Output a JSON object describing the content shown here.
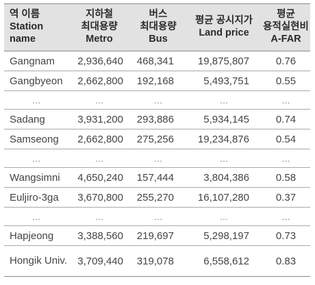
{
  "table": {
    "headers": [
      {
        "lines": [
          "역 이름",
          "Station",
          "name"
        ]
      },
      {
        "lines": [
          "지하철",
          "최대용량",
          "Metro"
        ]
      },
      {
        "lines": [
          "버스",
          "최대용량",
          "Bus"
        ]
      },
      {
        "lines": [
          "평균 공시지가",
          "Land price"
        ]
      },
      {
        "lines": [
          "평균",
          "용적실현비",
          "A-FAR"
        ]
      }
    ],
    "rows": [
      {
        "station": "Gangnam",
        "metro": "2,936,640",
        "bus": "468,341",
        "land_price": "19,875,807",
        "afar": "0.76"
      },
      {
        "station": "Gangbyeon",
        "metro": "2,662,800",
        "bus": "192,168",
        "land_price": "5,493,751",
        "afar": "0.55"
      },
      {
        "station": "…",
        "metro": "…",
        "bus": "…",
        "land_price": "…",
        "afar": "…"
      },
      {
        "station": "Sadang",
        "metro": "3,931,200",
        "bus": "293,886",
        "land_price": "5,934,145",
        "afar": "0.74"
      },
      {
        "station": "Samseong",
        "metro": "2,662,800",
        "bus": "275,256",
        "land_price": "19,234,876",
        "afar": "0.54"
      },
      {
        "station": "…",
        "metro": "…",
        "bus": "…",
        "land_price": "…",
        "afar": "…"
      },
      {
        "station": "Wangsimni",
        "metro": "4,650,240",
        "bus": "157,444",
        "land_price": "3,804,386",
        "afar": "0.58"
      },
      {
        "station": "Euljiro-3ga",
        "metro": "3,670,800",
        "bus": "255,270",
        "land_price": "16,107,280",
        "afar": "0.37"
      },
      {
        "station": "…",
        "metro": "…",
        "bus": "…",
        "land_price": "…",
        "afar": "…"
      },
      {
        "station": "Hapjeong",
        "metro": "3,388,560",
        "bus": "219,697",
        "land_price": "5,298,197",
        "afar": "0.73"
      },
      {
        "station": "Hongik Univ.",
        "metro": "3,709,440",
        "bus": "319,078",
        "land_price": "6,558,612",
        "afar": "0.83"
      }
    ]
  },
  "colors": {
    "header_bg": "#e2e2e2",
    "rule": "#a9a9a9",
    "text": "#444444"
  }
}
